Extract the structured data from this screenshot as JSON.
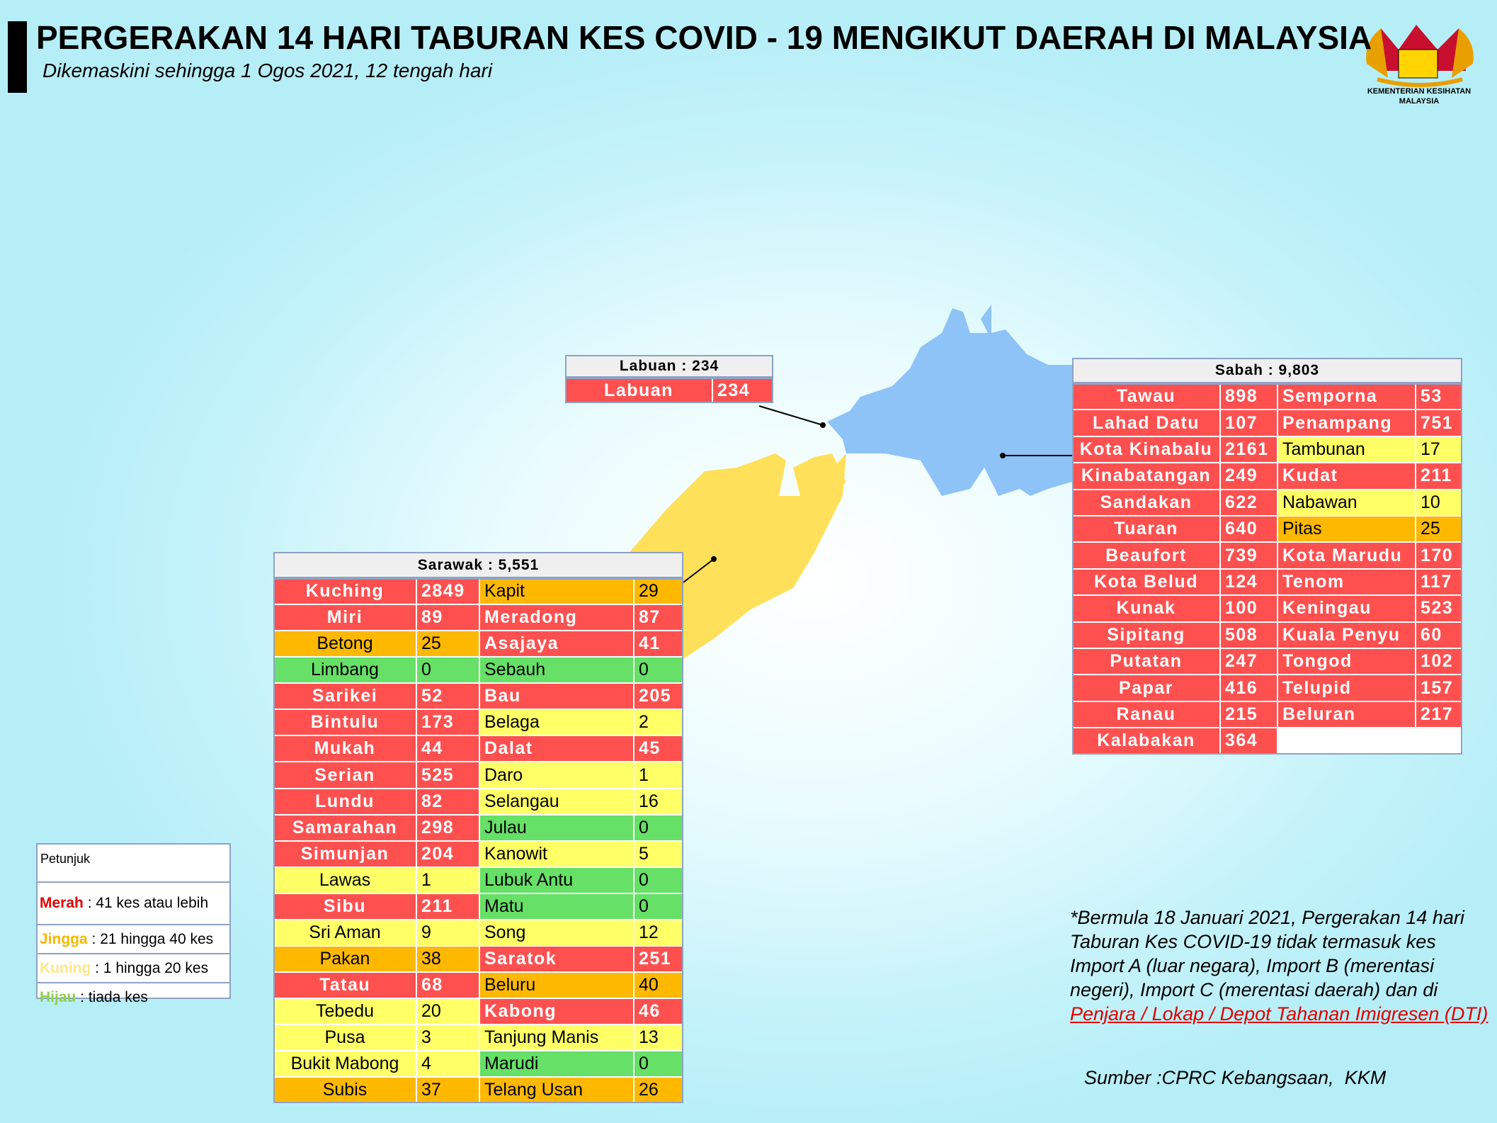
{
  "header": {
    "title": "PERGERAKAN 14 HARI TABURAN KES COVID - 19 MENGIKUT DAERAH DI MALAYSIA",
    "subtitle": "Dikemaskini sehingga 1 Ogos 2021, 12 tengah hari",
    "logo_text": [
      "KEMENTERIAN KESIHATAN",
      "MALAYSIA"
    ]
  },
  "regions": [
    {
      "title": "Labuan : 234",
      "columns": [
        [
          {
            "name": "Labuan",
            "cases": 234,
            "color": "#ff5050"
          }
        ]
      ]
    },
    {
      "title": "Sabah : 9,803",
      "columns": [
        [
          {
            "name": "Tawau",
            "cases": 898,
            "color": "#ff5050"
          },
          {
            "name": "Lahad Datu",
            "cases": 107,
            "color": "#ff5050"
          },
          {
            "name": "Kota Kinabalu",
            "cases": 2161,
            "color": "#ff5050"
          },
          {
            "name": "Kinabatangan",
            "cases": 249,
            "color": "#ff5050"
          },
          {
            "name": "Sandakan",
            "cases": 622,
            "color": "#ff5050"
          },
          {
            "name": "Tuaran",
            "cases": 640,
            "color": "#ff5050"
          },
          {
            "name": "Beaufort",
            "cases": 739,
            "color": "#ff5050"
          },
          {
            "name": "Kota Belud",
            "cases": 124,
            "color": "#ff5050"
          },
          {
            "name": "Kunak",
            "cases": 100,
            "color": "#ff5050"
          },
          {
            "name": "Sipitang",
            "cases": 508,
            "color": "#ff5050"
          },
          {
            "name": "Putatan",
            "cases": 247,
            "color": "#ff5050"
          },
          {
            "name": "Papar",
            "cases": 416,
            "color": "#ff5050"
          },
          {
            "name": "Ranau",
            "cases": 215,
            "color": "#ff5050"
          },
          {
            "name": "Kalabakan",
            "cases": 364,
            "color": "#ff5050"
          }
        ],
        [
          {
            "name": "Semporna",
            "cases": 53,
            "color": "#ff5050"
          },
          {
            "name": "Penampang",
            "cases": 751,
            "color": "#ff5050"
          },
          {
            "name": "Tambunan",
            "cases": 17,
            "color": "#ffff66"
          },
          {
            "name": "Kudat",
            "cases": 211,
            "color": "#ff5050"
          },
          {
            "name": "Nabawan",
            "cases": 10,
            "color": "#ffff66"
          },
          {
            "name": "Pitas",
            "cases": 25,
            "color": "#ffb800"
          },
          {
            "name": "Kota Marudu",
            "cases": 170,
            "color": "#ff5050"
          },
          {
            "name": "Tenom",
            "cases": 117,
            "color": "#ff5050"
          },
          {
            "name": "Keningau",
            "cases": 523,
            "color": "#ff5050"
          },
          {
            "name": "Kuala Penyu",
            "cases": 60,
            "color": "#ff5050"
          },
          {
            "name": "Tongod",
            "cases": 102,
            "color": "#ff5050"
          },
          {
            "name": "Telupid",
            "cases": 157,
            "color": "#ff5050"
          },
          {
            "name": "Beluran",
            "cases": 217,
            "color": "#ff5050"
          }
        ]
      ]
    },
    {
      "title": "Sarawak : 5,551",
      "columns": [
        [
          {
            "name": "Kuching",
            "cases": 2849,
            "color": "#ff5050"
          },
          {
            "name": "Miri",
            "cases": 89,
            "color": "#ff5050"
          },
          {
            "name": "Betong",
            "cases": 25,
            "color": "#ffb800"
          },
          {
            "name": "Limbang",
            "cases": 0,
            "color": "#66e066"
          },
          {
            "name": "Sarikei",
            "cases": 52,
            "color": "#ff5050"
          },
          {
            "name": "Bintulu",
            "cases": 173,
            "color": "#ff5050"
          },
          {
            "name": "Mukah",
            "cases": 44,
            "color": "#ff5050"
          },
          {
            "name": "Serian",
            "cases": 525,
            "color": "#ff5050"
          },
          {
            "name": "Lundu",
            "cases": 82,
            "color": "#ff5050"
          },
          {
            "name": "Samarahan",
            "cases": 298,
            "color": "#ff5050"
          },
          {
            "name": "Simunjan",
            "cases": 204,
            "color": "#ff5050"
          },
          {
            "name": "Lawas",
            "cases": 1,
            "color": "#ffff66"
          },
          {
            "name": "Sibu",
            "cases": 211,
            "color": "#ff5050"
          },
          {
            "name": "Sri Aman",
            "cases": 9,
            "color": "#ffff66"
          },
          {
            "name": "Pakan",
            "cases": 38,
            "color": "#ffb800"
          },
          {
            "name": "Tatau",
            "cases": 68,
            "color": "#ff5050"
          },
          {
            "name": "Tebedu",
            "cases": 20,
            "color": "#ffff66"
          },
          {
            "name": "Pusa",
            "cases": 3,
            "color": "#ffff66"
          },
          {
            "name": "Bukit Mabong",
            "cases": 4,
            "color": "#ffff66"
          },
          {
            "name": "Subis",
            "cases": 37,
            "color": "#ffb800"
          }
        ],
        [
          {
            "name": "Kapit",
            "cases": 29,
            "color": "#ffb800"
          },
          {
            "name": "Meradong",
            "cases": 87,
            "color": "#ff5050"
          },
          {
            "name": "Asajaya",
            "cases": 41,
            "color": "#ff5050"
          },
          {
            "name": "Sebauh",
            "cases": 0,
            "color": "#66e066"
          },
          {
            "name": "Bau",
            "cases": 205,
            "color": "#ff5050"
          },
          {
            "name": "Belaga",
            "cases": 2,
            "color": "#ffff66"
          },
          {
            "name": "Dalat",
            "cases": 45,
            "color": "#ff5050"
          },
          {
            "name": "Daro",
            "cases": 1,
            "color": "#ffff66"
          },
          {
            "name": "Selangau",
            "cases": 16,
            "color": "#ffff66"
          },
          {
            "name": "Julau",
            "cases": 0,
            "color": "#66e066"
          },
          {
            "name": "Kanowit",
            "cases": 5,
            "color": "#ffff66"
          },
          {
            "name": "Lubuk Antu",
            "cases": 0,
            "color": "#66e066"
          },
          {
            "name": "Matu",
            "cases": 0,
            "color": "#66e066"
          },
          {
            "name": "Song",
            "cases": 12,
            "color": "#ffff66"
          },
          {
            "name": "Saratok",
            "cases": 251,
            "color": "#ff5050"
          },
          {
            "name": "Beluru",
            "cases": 40,
            "color": "#ffb800"
          },
          {
            "name": "Kabong",
            "cases": 46,
            "color": "#ff5050"
          },
          {
            "name": "Tanjung Manis",
            "cases": 13,
            "color": "#ffff66"
          },
          {
            "name": "Marudi",
            "cases": 0,
            "color": "#66e066"
          },
          {
            "name": "Telang Usan",
            "cases": 26,
            "color": "#ffb800"
          }
        ]
      ]
    }
  ],
  "legend": {
    "title": "Petunjuk",
    "items": [
      {
        "label": "Merah",
        "text": " : 41 kes atau lebih",
        "color": "#e00000"
      },
      {
        "label": "Jingga",
        "text": " : 21 hingga 40 kes",
        "color": "#f5b800"
      },
      {
        "label": "Kuning",
        "text": " : 1 hingga 20 kes",
        "color": "#ffe68a"
      },
      {
        "label": "Hijau",
        "text": " : tiada kes",
        "color": "#8fcf4f"
      }
    ]
  },
  "note": {
    "text": "*Bermula 18 Januari 2021, Pergerakan 14 hari Taburan Kes COVID-19 tidak termasuk kes Import A (luar negara), Import B (merentasi negeri), Import C (merentasi daerah) dan di",
    "link": "Penjara / Lokap / Depot Tahanan Imigresen (DTI)"
  },
  "source": "Sumber :CPRC Kebangsaan,  KKM"
}
